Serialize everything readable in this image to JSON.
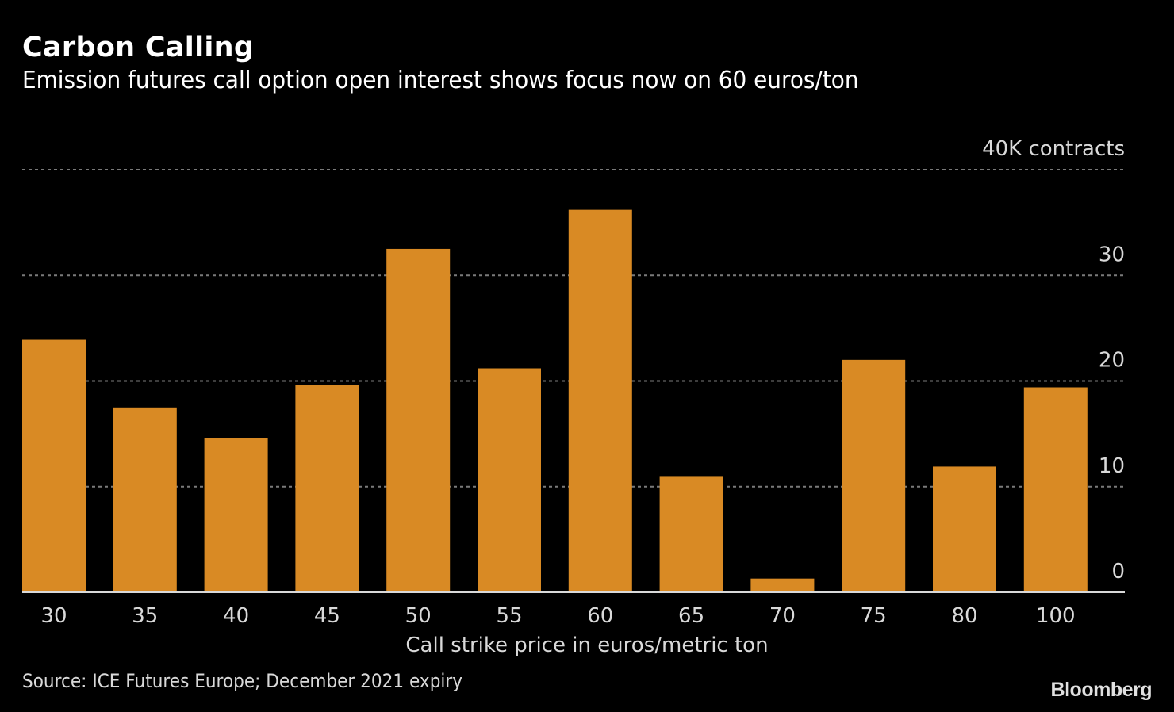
{
  "header": {
    "title": "Carbon Calling",
    "subtitle": "Emission futures call option open interest shows focus now on 60 euros/ton"
  },
  "footer": {
    "source": "Source: ICE Futures Europe; December 2021 expiry",
    "brand": "Bloomberg"
  },
  "colors": {
    "bar": "#D98A24",
    "background": "#000000",
    "grid": "#7a7a7a",
    "axis": "#d9d9d9",
    "text": "#d9d9d9"
  },
  "chart_data": {
    "type": "bar",
    "title": "Carbon Calling",
    "subtitle": "Emission futures call option open interest shows focus now on 60 euros/ton",
    "xlabel": "Call strike price in euros/metric ton",
    "ylabel": "K contracts",
    "unit_label": "40K contracts",
    "categories": [
      "30",
      "35",
      "40",
      "45",
      "50",
      "55",
      "60",
      "65",
      "70",
      "75",
      "80",
      "100"
    ],
    "values": [
      23.9,
      17.5,
      14.6,
      19.6,
      32.5,
      21.2,
      36.2,
      11.0,
      1.3,
      22.0,
      11.9,
      19.4
    ],
    "ylim": [
      0,
      40
    ],
    "yticks": [
      0,
      10,
      20,
      30,
      40
    ],
    "ytick_labels": [
      "0",
      "10",
      "20",
      "30",
      "40K contracts"
    ],
    "y_axis_position": "right",
    "grid": true,
    "legend": "none",
    "source": "Source: ICE Futures Europe; December 2021 expiry"
  }
}
